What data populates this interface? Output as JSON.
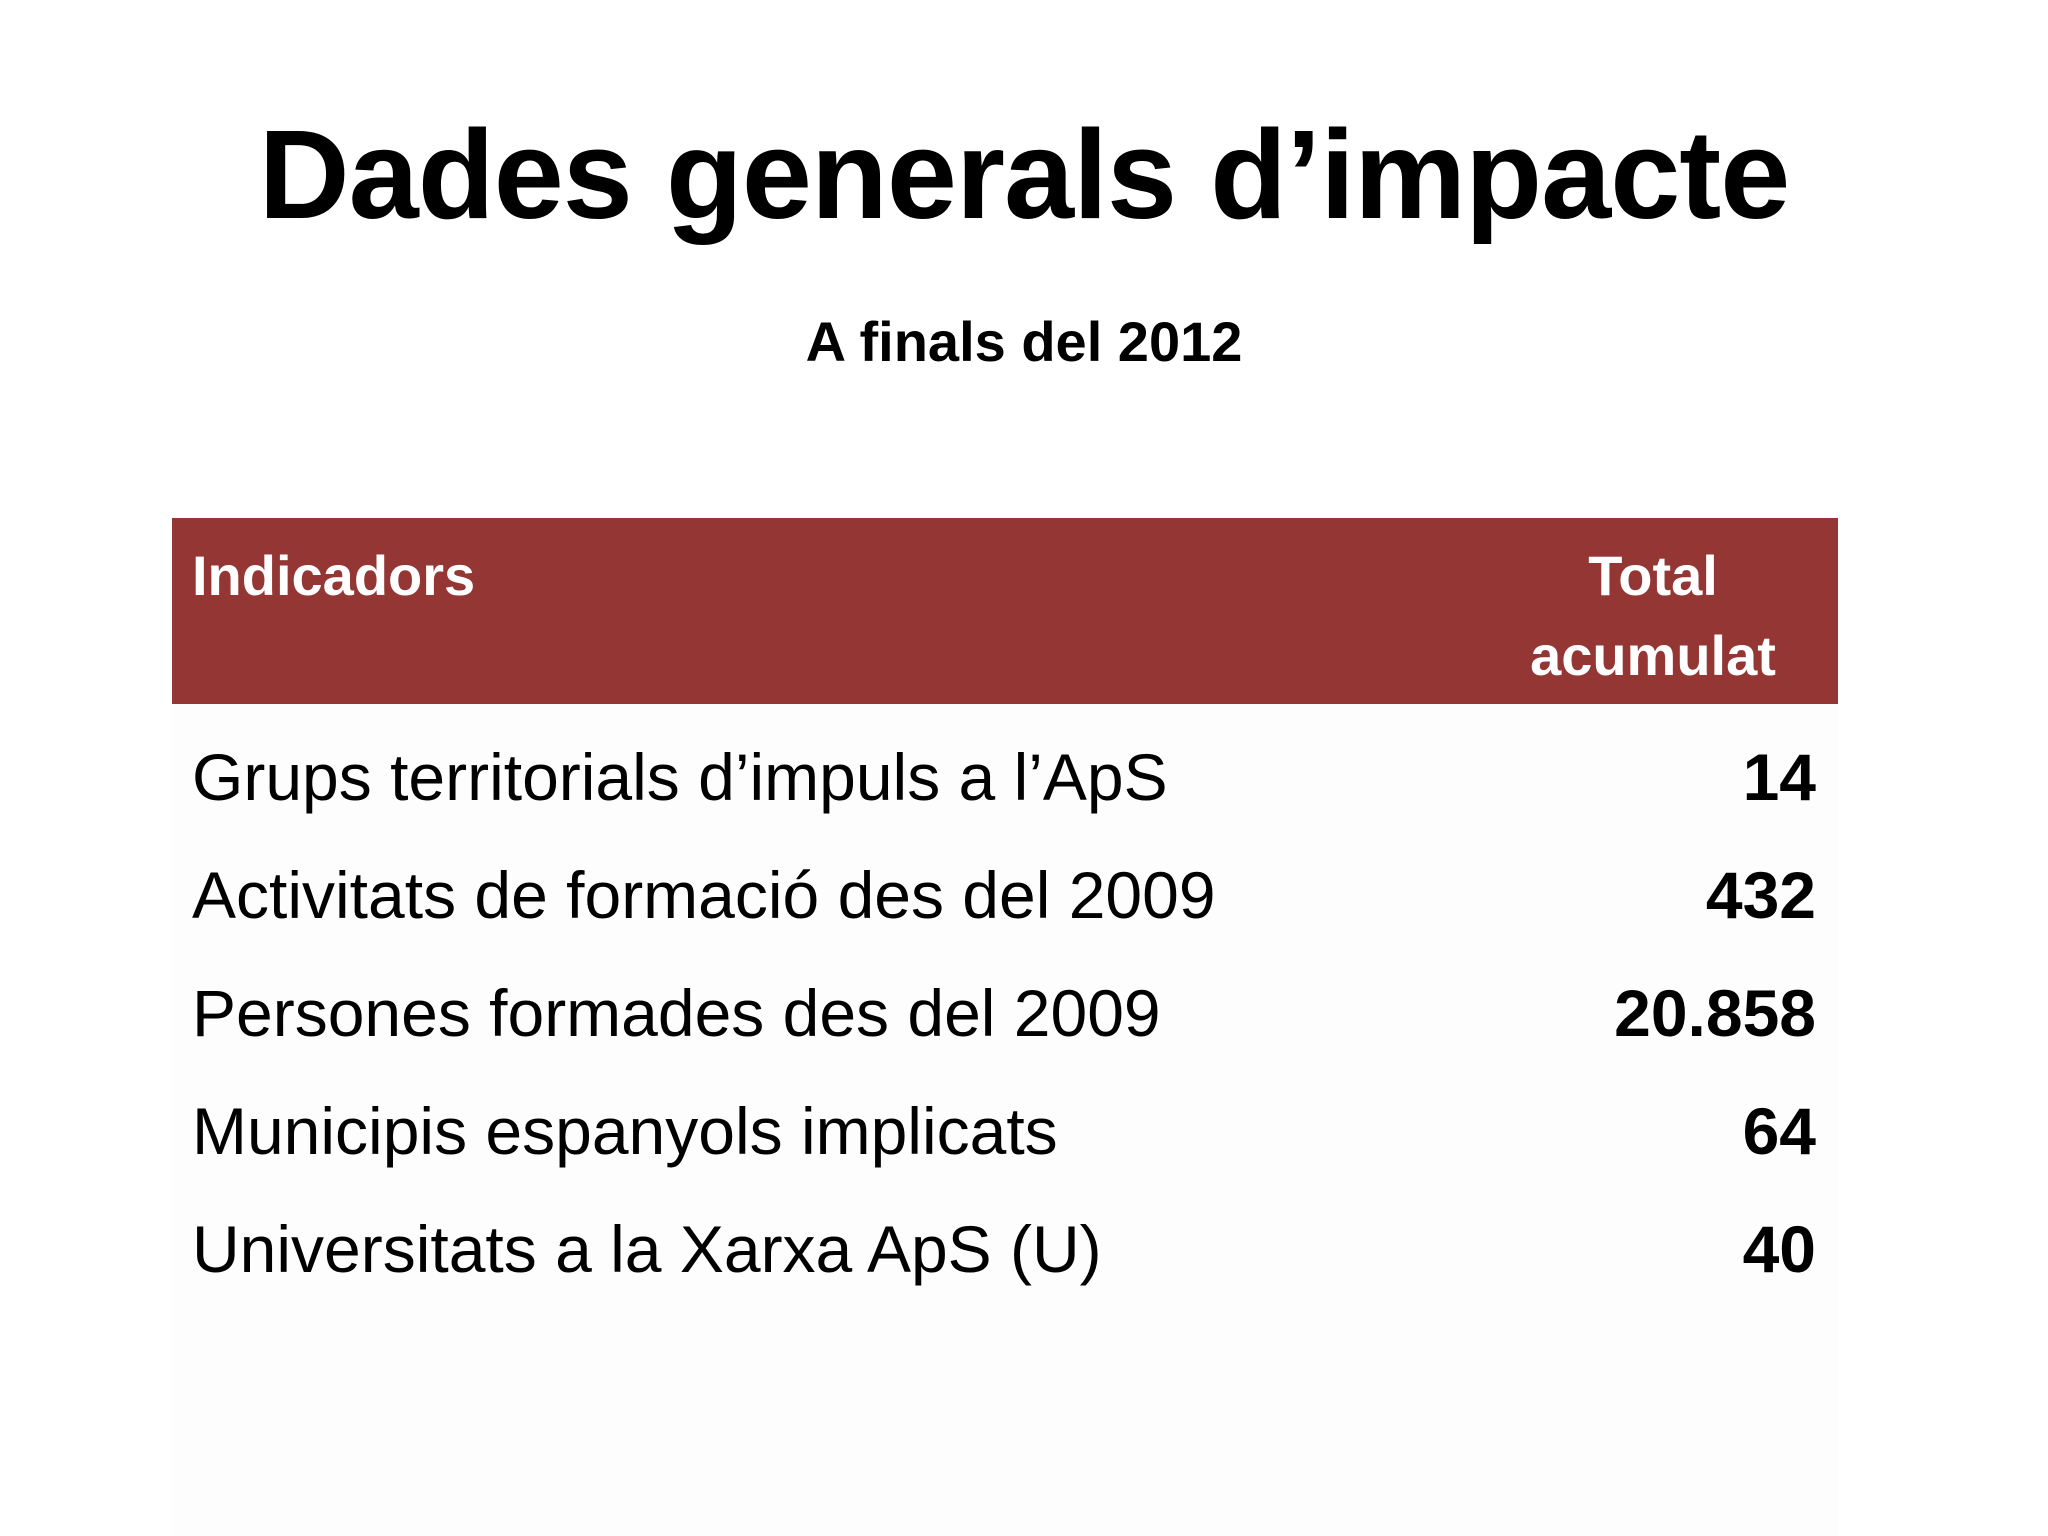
{
  "slide": {
    "title": "Dades generals d’impacte",
    "subtitle": "A finals del 2012"
  },
  "table": {
    "header_color": "#943634",
    "columns": {
      "indicators": "Indicadors",
      "total_line1": "Total",
      "total_line2": "acumulat"
    },
    "rows": [
      {
        "label": "Grups territorials d’impuls a l’ApS",
        "value": "14"
      },
      {
        "label": "Activitats de formació des del 2009",
        "value": "432"
      },
      {
        "label": "Persones formades des del 2009",
        "value": "20.858"
      },
      {
        "label": "Municipis espanyols implicats",
        "value": "64"
      },
      {
        "label": "Universitats a la Xarxa ApS (U)",
        "value": "40"
      }
    ]
  }
}
